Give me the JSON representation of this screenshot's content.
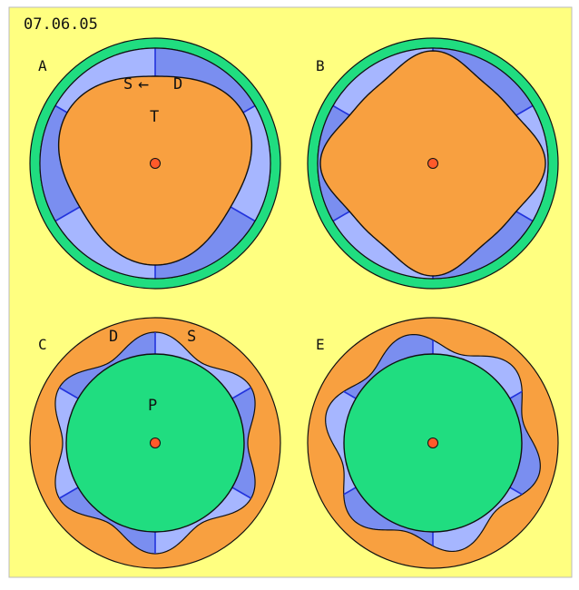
{
  "date": "07.06.05",
  "colors": {
    "background": "#ffff80",
    "frame": "#bbbbbb",
    "rotor": "#f8a040",
    "ring_green": "#20dd80",
    "chamber_dark": "#7a8ef0",
    "chamber_light": "#a6b6ff",
    "divider": "#2233dd",
    "outline": "#111111",
    "center": "#ff5a2a"
  },
  "panels": [
    {
      "id": "A",
      "label": "A",
      "annotations": [
        {
          "text": "S",
          "role": "label-s"
        },
        {
          "text": "←",
          "role": "arrow"
        },
        {
          "text": "D",
          "role": "label-d"
        },
        {
          "text": "T",
          "role": "label-t"
        }
      ]
    },
    {
      "id": "B",
      "label": "B",
      "annotations": []
    },
    {
      "id": "C",
      "label": "C",
      "annotations": [
        {
          "text": "D",
          "role": "label-d"
        },
        {
          "text": "S",
          "role": "label-s"
        },
        {
          "text": "P",
          "role": "label-p"
        }
      ]
    },
    {
      "id": "E",
      "label": "E",
      "annotations": []
    }
  ]
}
